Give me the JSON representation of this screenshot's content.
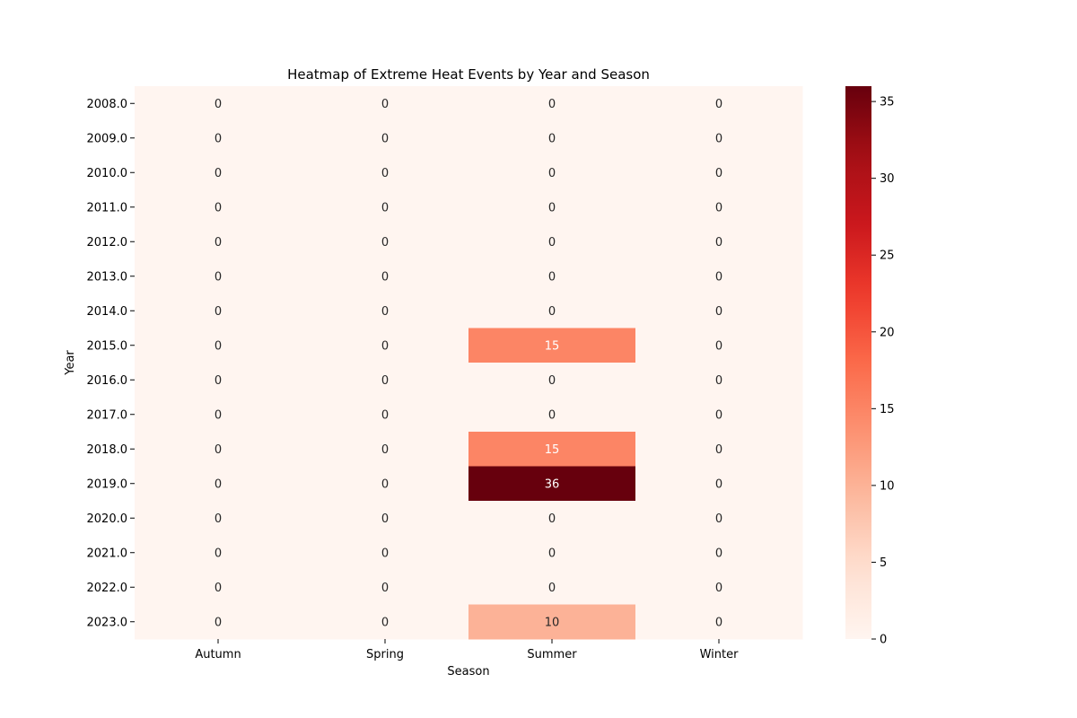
{
  "chart_data": {
    "type": "heatmap",
    "title": "Heatmap of Extreme Heat Events by Year and Season",
    "xlabel": "Season",
    "ylabel": "Year",
    "x_categories": [
      "Autumn",
      "Spring",
      "Summer",
      "Winter"
    ],
    "y_categories": [
      "2008.0",
      "2009.0",
      "2010.0",
      "2011.0",
      "2012.0",
      "2013.0",
      "2014.0",
      "2015.0",
      "2016.0",
      "2017.0",
      "2018.0",
      "2019.0",
      "2020.0",
      "2021.0",
      "2022.0",
      "2023.0"
    ],
    "values": [
      [
        0,
        0,
        0,
        0
      ],
      [
        0,
        0,
        0,
        0
      ],
      [
        0,
        0,
        0,
        0
      ],
      [
        0,
        0,
        0,
        0
      ],
      [
        0,
        0,
        0,
        0
      ],
      [
        0,
        0,
        0,
        0
      ],
      [
        0,
        0,
        0,
        0
      ],
      [
        0,
        0,
        15,
        0
      ],
      [
        0,
        0,
        0,
        0
      ],
      [
        0,
        0,
        0,
        0
      ],
      [
        0,
        0,
        15,
        0
      ],
      [
        0,
        0,
        36,
        0
      ],
      [
        0,
        0,
        0,
        0
      ],
      [
        0,
        0,
        0,
        0
      ],
      [
        0,
        0,
        0,
        0
      ],
      [
        0,
        0,
        10,
        0
      ]
    ],
    "colormap": "Reds",
    "vmin": 0,
    "vmax": 36,
    "colorbar_ticks": [
      0,
      5,
      10,
      15,
      20,
      25,
      30,
      35
    ],
    "annotations": true
  }
}
